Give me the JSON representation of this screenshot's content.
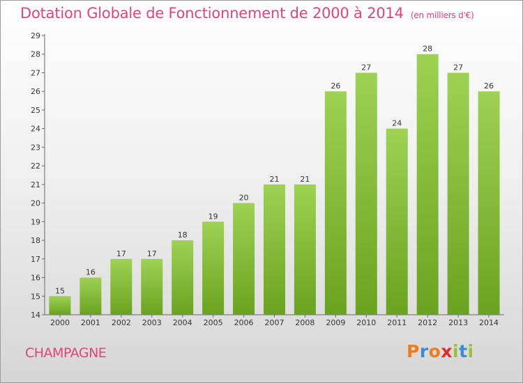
{
  "chart_data": {
    "type": "bar",
    "title": "Dotation Globale de Fonctionnement de 2000 à 2014",
    "subtitle": "(en milliers d'€)",
    "xlabel": "",
    "ylabel": "",
    "categories": [
      "2000",
      "2001",
      "2002",
      "2003",
      "2004",
      "2005",
      "2006",
      "2007",
      "2008",
      "2009",
      "2010",
      "2011",
      "2012",
      "2013",
      "2014"
    ],
    "values": [
      15,
      16,
      17,
      17,
      18,
      19,
      20,
      21,
      21,
      26,
      27,
      24,
      28,
      27,
      26
    ],
    "ylim": [
      14,
      29
    ],
    "yticks": [
      14,
      15,
      16,
      17,
      18,
      19,
      20,
      21,
      22,
      23,
      24,
      25,
      26,
      27,
      28,
      29
    ],
    "grid": false,
    "colors": {
      "bar_light": "#9fd153",
      "bar_dark": "#6aa31f",
      "axis": "#666666",
      "title": "#e0457a"
    }
  },
  "commune": "CHAMPAGNE",
  "logo": {
    "letters": [
      "P",
      "r",
      "o",
      "x",
      "i",
      "t",
      "i"
    ],
    "colors": [
      "#f07c1c",
      "#3b8bd4",
      "#f07c1c",
      "#e32b2b",
      "#9ac03a",
      "#3b8bd4",
      "#9ac03a"
    ]
  }
}
